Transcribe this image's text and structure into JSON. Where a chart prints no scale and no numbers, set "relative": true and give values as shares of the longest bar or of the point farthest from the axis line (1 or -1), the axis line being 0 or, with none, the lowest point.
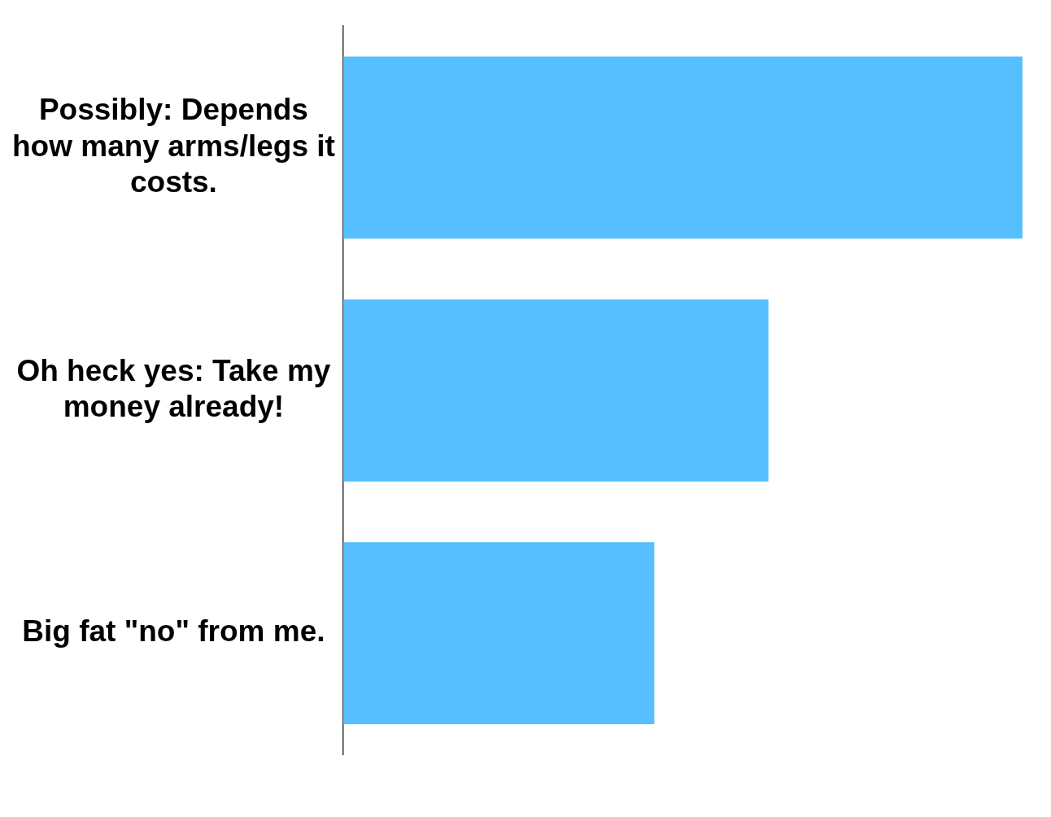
{
  "chart_data": {
    "type": "bar",
    "orientation": "horizontal",
    "relative": true,
    "categories": [
      "Possibly: Depends how many arms/legs it costs.",
      "Oh heck yes: Take my money already!",
      "Big fat \"no\" from me."
    ],
    "values": [
      1,
      0.626,
      0.458
    ],
    "color": "#56bfff"
  }
}
